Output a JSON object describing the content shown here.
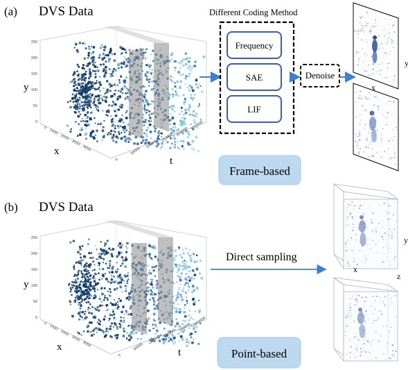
{
  "panel_a": {
    "label": "(a)",
    "title": "DVS Data",
    "axis_y": "y",
    "axis_x": "x",
    "axis_t": "t",
    "y_ticks": [
      "250",
      "200",
      "150",
      "100",
      "50",
      "0"
    ],
    "x_ticks": [
      "0",
      "1000",
      "2000",
      "3000",
      "4000"
    ],
    "t_ticks": [
      "0",
      "50000",
      "100000",
      "150000",
      "200000",
      "250000"
    ],
    "coding_title": "Different Coding Method",
    "methods": [
      "Frequency",
      "SAE",
      "LIF"
    ],
    "denoise": "Denoise",
    "mode_label": "Frame-based",
    "frame_axis_y": "y",
    "frame_axis_x": "x"
  },
  "panel_b": {
    "label": "(b)",
    "title": "DVS Data",
    "axis_y": "y",
    "axis_x": "x",
    "axis_t": "t",
    "y_ticks": [
      "250",
      "200",
      "150",
      "100",
      "50",
      "0"
    ],
    "x_ticks": [
      "0",
      "1000",
      "2000",
      "3000",
      "4000"
    ],
    "t_ticks": [
      "0",
      "50000",
      "100000",
      "150000",
      "200000",
      "250000"
    ],
    "arrow_label": "Direct sampling",
    "mode_label": "Point-based",
    "cube_axis_y": "y",
    "cube_axis_x": "x",
    "cube_axis_z": "z"
  },
  "colors": {
    "dot_dark": "#0e3a66",
    "dot_mid": "#2f6fa8",
    "dot_light": "#7fc0e0",
    "box_border": "#3b5bb5",
    "arrow": "#3f7fd0",
    "mode_fill": "#bcd9f0",
    "plane": "#8a8a8a"
  }
}
